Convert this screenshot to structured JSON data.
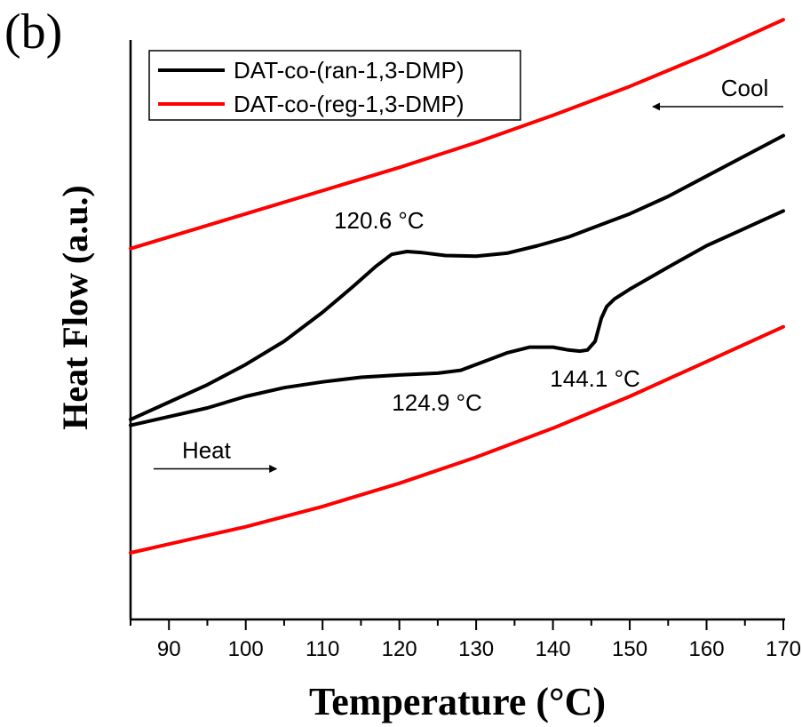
{
  "panel_label": "(b)",
  "chart_data": {
    "type": "line",
    "title": "",
    "xlabel": "Temperature (°C)",
    "ylabel": "Heat Flow (a.u.)",
    "xlim": [
      85,
      170
    ],
    "ylim": [
      0,
      100
    ],
    "y_tick_labels_shown": false,
    "x_ticks": [
      90,
      100,
      110,
      120,
      130,
      140,
      150,
      160,
      170
    ],
    "legend_position": "top-left",
    "series": [
      {
        "name": "DAT-co-(ran-1,3-DMP)",
        "color": "#000000",
        "curves": [
          {
            "segment": "cooling",
            "x": [
              85,
              90,
              95,
              100,
              105,
              110,
              114,
              117,
              119,
              121,
              123,
              126,
              130,
              134,
              138,
              142,
              146,
              150,
              155,
              160,
              165,
              170
            ],
            "y": [
              34.5,
              37.5,
              40.5,
              44.0,
              48.0,
              53.0,
              57.5,
              61.0,
              63.0,
              63.5,
              63.3,
              62.8,
              62.7,
              63.2,
              64.5,
              66.0,
              68.0,
              70.0,
              73.0,
              76.5,
              80.0,
              83.5
            ]
          },
          {
            "segment": "heating",
            "x": [
              85,
              90,
              95,
              100,
              105,
              110,
              115,
              120,
              125,
              128,
              131,
              134,
              137,
              140,
              142,
              143.5,
              144.5,
              145.5,
              146.3,
              147,
              148,
              150,
              155,
              160,
              165,
              170
            ],
            "y": [
              33.5,
              35.0,
              36.5,
              38.5,
              40.0,
              41.0,
              41.8,
              42.2,
              42.5,
              43.0,
              44.5,
              46.0,
              47.0,
              47.0,
              46.5,
              46.3,
              46.5,
              48.0,
              52.0,
              54.0,
              55.3,
              57.0,
              60.8,
              64.5,
              67.5,
              70.5
            ]
          }
        ]
      },
      {
        "name": "DAT-co-(reg-1,3-DMP)",
        "color": "#ff0000",
        "curves": [
          {
            "segment": "cooling",
            "x": [
              85,
              90,
              100,
              110,
              120,
              130,
              140,
              150,
              160,
              170
            ],
            "y": [
              64.0,
              66.0,
              70.0,
              74.0,
              78.0,
              82.3,
              87.0,
              92.0,
              97.5,
              103.5
            ]
          },
          {
            "segment": "heating",
            "x": [
              85,
              90,
              100,
              110,
              120,
              130,
              140,
              150,
              160,
              170
            ],
            "y": [
              11.5,
              13.0,
              16.0,
              19.5,
              23.5,
              28.0,
              33.0,
              38.5,
              44.5,
              50.5
            ]
          }
        ]
      }
    ],
    "annotations": [
      {
        "text": "120.6 °C",
        "x": 120.6,
        "y": 63.5
      },
      {
        "text": "124.9 °C",
        "x": 124.9,
        "y": 42.5
      },
      {
        "text": "144.1 °C",
        "x": 144.1,
        "y": 46.3
      },
      {
        "text": "Cool",
        "arrow": "left",
        "x_from": 170,
        "x_to": 153,
        "y": 88.5
      },
      {
        "text": "Heat",
        "arrow": "right",
        "x_from": 88,
        "x_to": 104,
        "y": 26.0
      }
    ]
  }
}
